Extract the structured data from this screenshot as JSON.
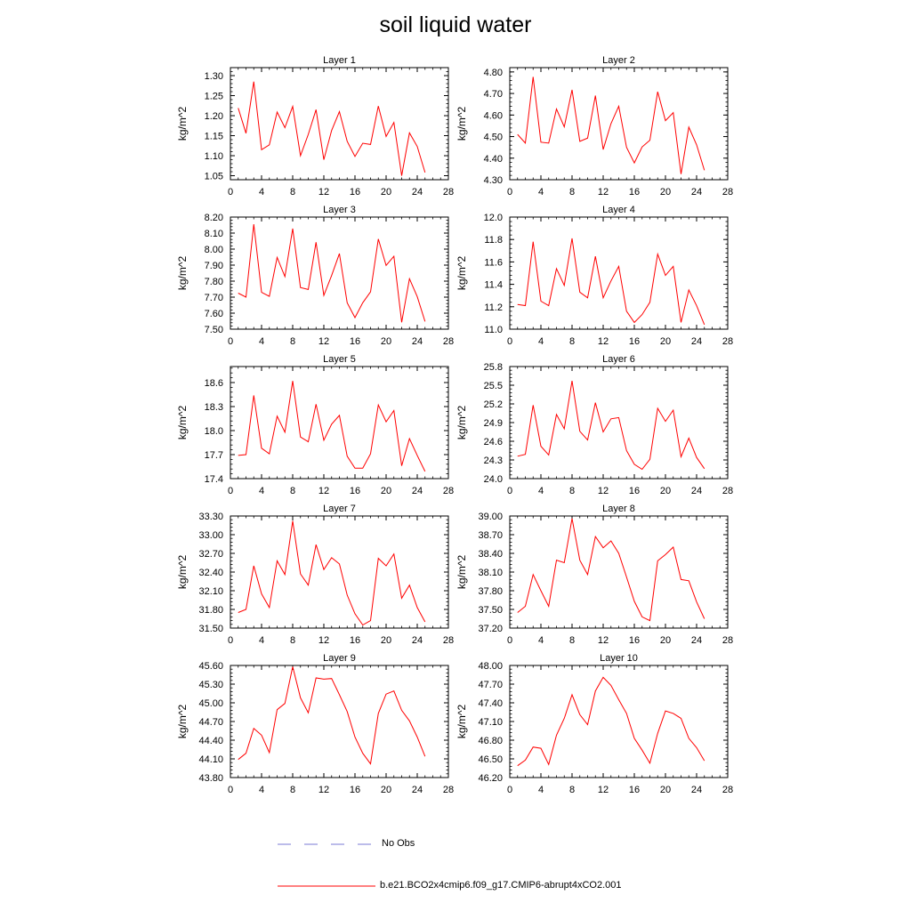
{
  "title": "soil liquid water",
  "legend": {
    "entries": [
      {
        "label": "No Obs",
        "color": "#7a7ad6",
        "dash": "dashed"
      },
      {
        "label": "b.e21.BCO2x4cmip6.f09_g17.CMIP6-abrupt4xCO2.001",
        "color": "#ff0000",
        "dash": "solid"
      }
    ]
  },
  "chart_data": [
    {
      "type": "line",
      "title": "Layer 1",
      "ylabel": "kg/m^2",
      "xlim": [
        0,
        28
      ],
      "xticks": [
        "0",
        "4",
        "8",
        "12",
        "16",
        "20",
        "24",
        "28"
      ],
      "ylim": [
        1.04,
        1.32
      ],
      "yticks": [
        "1.05",
        "1.10",
        "1.15",
        "1.20",
        "1.25",
        "1.30"
      ],
      "x": [
        1,
        2,
        3,
        4,
        5,
        6,
        7,
        8,
        9,
        10,
        11,
        12,
        13,
        14,
        15,
        16,
        17,
        18,
        19,
        20,
        21,
        22,
        23,
        24,
        25
      ],
      "series": [
        {
          "name": "b.e21.BCO2x4cmip6.f09_g17.CMIP6-abrupt4xCO2.001",
          "color": "#ff0000",
          "values": [
            1.219,
            1.156,
            1.285,
            1.115,
            1.127,
            1.209,
            1.17,
            1.223,
            1.1,
            1.153,
            1.215,
            1.09,
            1.163,
            1.21,
            1.136,
            1.098,
            1.131,
            1.128,
            1.224,
            1.148,
            1.183,
            1.05,
            1.157,
            1.123,
            1.058
          ]
        }
      ]
    },
    {
      "type": "line",
      "title": "Layer 2",
      "ylabel": "kg/m^2",
      "xlim": [
        0,
        28
      ],
      "xticks": [
        "0",
        "4",
        "8",
        "12",
        "16",
        "20",
        "24",
        "28"
      ],
      "ylim": [
        4.3,
        4.82
      ],
      "yticks": [
        "4.30",
        "4.40",
        "4.50",
        "4.60",
        "4.70",
        "4.80"
      ],
      "x": [
        1,
        2,
        3,
        4,
        5,
        6,
        7,
        8,
        9,
        10,
        11,
        12,
        13,
        14,
        15,
        16,
        17,
        18,
        19,
        20,
        21,
        22,
        23,
        24,
        25
      ],
      "series": [
        {
          "name": "b.e21.BCO2x4cmip6.f09_g17.CMIP6-abrupt4xCO2.001",
          "color": "#ff0000",
          "values": [
            4.51,
            4.47,
            4.777,
            4.474,
            4.47,
            4.628,
            4.545,
            4.717,
            4.478,
            4.493,
            4.69,
            4.44,
            4.56,
            4.641,
            4.45,
            4.378,
            4.452,
            4.483,
            4.708,
            4.574,
            4.611,
            4.326,
            4.544,
            4.462,
            4.344
          ]
        }
      ]
    },
    {
      "type": "line",
      "title": "Layer 3",
      "ylabel": "kg/m^2",
      "xlim": [
        0,
        28
      ],
      "xticks": [
        "0",
        "4",
        "8",
        "12",
        "16",
        "20",
        "24",
        "28"
      ],
      "ylim": [
        7.5,
        8.2
      ],
      "yticks": [
        "7.50",
        "7.60",
        "7.70",
        "7.80",
        "7.90",
        "8.00",
        "8.10",
        "8.20"
      ],
      "x": [
        1,
        2,
        3,
        4,
        5,
        6,
        7,
        8,
        9,
        10,
        11,
        12,
        13,
        14,
        15,
        16,
        17,
        18,
        19,
        20,
        21,
        22,
        23,
        24,
        25
      ],
      "series": [
        {
          "name": "b.e21.BCO2x4cmip6.f09_g17.CMIP6-abrupt4xCO2.001",
          "color": "#ff0000",
          "values": [
            7.725,
            7.7,
            8.155,
            7.73,
            7.705,
            7.948,
            7.828,
            8.128,
            7.76,
            7.748,
            8.043,
            7.711,
            7.835,
            7.972,
            7.665,
            7.572,
            7.665,
            7.733,
            8.063,
            7.898,
            7.955,
            7.543,
            7.815,
            7.703,
            7.548
          ]
        }
      ]
    },
    {
      "type": "line",
      "title": "Layer 4",
      "ylabel": "kg/m^2",
      "xlim": [
        0,
        28
      ],
      "xticks": [
        "0",
        "4",
        "8",
        "12",
        "16",
        "20",
        "24",
        "28"
      ],
      "ylim": [
        11.0,
        12.0
      ],
      "yticks": [
        "11.0",
        "11.2",
        "11.4",
        "11.6",
        "11.8",
        "12.0"
      ],
      "x": [
        1,
        2,
        3,
        4,
        5,
        6,
        7,
        8,
        9,
        10,
        11,
        12,
        13,
        14,
        15,
        16,
        17,
        18,
        19,
        20,
        21,
        22,
        23,
        24,
        25
      ],
      "series": [
        {
          "name": "b.e21.BCO2x4cmip6.f09_g17.CMIP6-abrupt4xCO2.001",
          "color": "#ff0000",
          "values": [
            11.22,
            11.21,
            11.78,
            11.25,
            11.21,
            11.54,
            11.39,
            11.81,
            11.33,
            11.28,
            11.65,
            11.28,
            11.43,
            11.56,
            11.16,
            11.06,
            11.13,
            11.24,
            11.67,
            11.48,
            11.56,
            11.06,
            11.35,
            11.21,
            11.04
          ]
        }
      ]
    },
    {
      "type": "line",
      "title": "Layer 5",
      "ylabel": "kg/m^2",
      "xlim": [
        0,
        28
      ],
      "xticks": [
        "0",
        "4",
        "8",
        "12",
        "16",
        "20",
        "24",
        "28"
      ],
      "ylim": [
        17.4,
        18.8
      ],
      "yticks": [
        "17.4",
        "17.7",
        "18.0",
        "18.3",
        "18.6"
      ],
      "x": [
        1,
        2,
        3,
        4,
        5,
        6,
        7,
        8,
        9,
        10,
        11,
        12,
        13,
        14,
        15,
        16,
        17,
        18,
        19,
        20,
        21,
        22,
        23,
        24,
        25
      ],
      "series": [
        {
          "name": "b.e21.BCO2x4cmip6.f09_g17.CMIP6-abrupt4xCO2.001",
          "color": "#ff0000",
          "values": [
            17.69,
            17.7,
            18.44,
            17.78,
            17.71,
            18.18,
            17.98,
            18.62,
            17.92,
            17.86,
            18.33,
            17.88,
            18.08,
            18.19,
            17.68,
            17.53,
            17.53,
            17.71,
            18.32,
            18.11,
            18.25,
            17.56,
            17.9,
            17.69,
            17.49
          ]
        }
      ]
    },
    {
      "type": "line",
      "title": "Layer 6",
      "ylabel": "kg/m^2",
      "xlim": [
        0,
        28
      ],
      "xticks": [
        "0",
        "4",
        "8",
        "12",
        "16",
        "20",
        "24",
        "28"
      ],
      "ylim": [
        24.0,
        25.8
      ],
      "yticks": [
        "24.0",
        "24.3",
        "24.6",
        "24.9",
        "25.2",
        "25.5",
        "25.8"
      ],
      "x": [
        1,
        2,
        3,
        4,
        5,
        6,
        7,
        8,
        9,
        10,
        11,
        12,
        13,
        14,
        15,
        16,
        17,
        18,
        19,
        20,
        21,
        22,
        23,
        24,
        25
      ],
      "series": [
        {
          "name": "b.e21.BCO2x4cmip6.f09_g17.CMIP6-abrupt4xCO2.001",
          "color": "#ff0000",
          "values": [
            24.36,
            24.39,
            25.18,
            24.52,
            24.38,
            25.03,
            24.8,
            25.57,
            24.76,
            24.62,
            25.22,
            24.75,
            24.96,
            24.98,
            24.45,
            24.23,
            24.15,
            24.31,
            25.13,
            24.92,
            25.1,
            24.35,
            24.65,
            24.34,
            24.16
          ]
        }
      ]
    },
    {
      "type": "line",
      "title": "Layer 7",
      "ylabel": "kg/m^2",
      "xlim": [
        0,
        28
      ],
      "xticks": [
        "0",
        "4",
        "8",
        "12",
        "16",
        "20",
        "24",
        "28"
      ],
      "ylim": [
        31.5,
        33.3
      ],
      "yticks": [
        "31.50",
        "31.80",
        "32.10",
        "32.40",
        "32.70",
        "33.00",
        "33.30"
      ],
      "x": [
        1,
        2,
        3,
        4,
        5,
        6,
        7,
        8,
        9,
        10,
        11,
        12,
        13,
        14,
        15,
        16,
        17,
        18,
        19,
        20,
        21,
        22,
        23,
        24,
        25
      ],
      "series": [
        {
          "name": "b.e21.BCO2x4cmip6.f09_g17.CMIP6-abrupt4xCO2.001",
          "color": "#ff0000",
          "values": [
            31.75,
            31.8,
            32.5,
            32.05,
            31.83,
            32.58,
            32.36,
            33.22,
            32.37,
            32.19,
            32.84,
            32.44,
            32.63,
            32.53,
            32.03,
            31.73,
            31.55,
            31.62,
            32.62,
            32.5,
            32.69,
            31.98,
            32.19,
            31.83,
            31.6
          ]
        }
      ]
    },
    {
      "type": "line",
      "title": "Layer 8",
      "ylabel": "kg/m^2",
      "xlim": [
        0,
        28
      ],
      "xticks": [
        "0",
        "4",
        "8",
        "12",
        "16",
        "20",
        "24",
        "28"
      ],
      "ylim": [
        37.2,
        39.0
      ],
      "yticks": [
        "37.20",
        "37.50",
        "37.80",
        "38.10",
        "38.40",
        "38.70",
        "39.00"
      ],
      "x": [
        1,
        2,
        3,
        4,
        5,
        6,
        7,
        8,
        9,
        10,
        11,
        12,
        13,
        14,
        15,
        16,
        17,
        18,
        19,
        20,
        21,
        22,
        23,
        24,
        25
      ],
      "series": [
        {
          "name": "b.e21.BCO2x4cmip6.f09_g17.CMIP6-abrupt4xCO2.001",
          "color": "#ff0000",
          "values": [
            37.45,
            37.55,
            38.06,
            37.8,
            37.55,
            38.29,
            38.25,
            38.96,
            38.29,
            38.06,
            38.67,
            38.49,
            38.6,
            38.4,
            38.02,
            37.63,
            37.38,
            37.32,
            38.28,
            38.38,
            38.5,
            37.98,
            37.96,
            37.62,
            37.35
          ]
        }
      ]
    },
    {
      "type": "line",
      "title": "Layer 9",
      "ylabel": "kg/m^2",
      "xlim": [
        0,
        28
      ],
      "xticks": [
        "0",
        "4",
        "8",
        "12",
        "16",
        "20",
        "24",
        "28"
      ],
      "ylim": [
        43.8,
        45.6
      ],
      "yticks": [
        "43.80",
        "44.10",
        "44.40",
        "44.70",
        "45.00",
        "45.30",
        "45.60"
      ],
      "x": [
        1,
        2,
        3,
        4,
        5,
        6,
        7,
        8,
        9,
        10,
        11,
        12,
        13,
        14,
        15,
        16,
        17,
        18,
        19,
        20,
        21,
        22,
        23,
        24,
        25
      ],
      "series": [
        {
          "name": "b.e21.BCO2x4cmip6.f09_g17.CMIP6-abrupt4xCO2.001",
          "color": "#ff0000",
          "values": [
            44.09,
            44.19,
            44.59,
            44.48,
            44.2,
            44.89,
            44.99,
            45.58,
            45.08,
            44.84,
            45.4,
            45.38,
            45.39,
            45.13,
            44.86,
            44.45,
            44.19,
            44.02,
            44.83,
            45.14,
            45.19,
            44.88,
            44.71,
            44.45,
            44.14
          ]
        }
      ]
    },
    {
      "type": "line",
      "title": "Layer 10",
      "ylabel": "kg/m^2",
      "xlim": [
        0,
        28
      ],
      "xticks": [
        "0",
        "4",
        "8",
        "12",
        "16",
        "20",
        "24",
        "28"
      ],
      "ylim": [
        46.2,
        48.0
      ],
      "yticks": [
        "46.20",
        "46.50",
        "46.80",
        "47.10",
        "47.40",
        "47.70",
        "48.00"
      ],
      "x": [
        1,
        2,
        3,
        4,
        5,
        6,
        7,
        8,
        9,
        10,
        11,
        12,
        13,
        14,
        15,
        16,
        17,
        18,
        19,
        20,
        21,
        22,
        23,
        24,
        25
      ],
      "series": [
        {
          "name": "b.e21.BCO2x4cmip6.f09_g17.CMIP6-abrupt4xCO2.001",
          "color": "#ff0000",
          "values": [
            46.39,
            46.48,
            46.69,
            46.67,
            46.41,
            46.88,
            47.15,
            47.53,
            47.21,
            47.05,
            47.59,
            47.81,
            47.68,
            47.45,
            47.23,
            46.83,
            46.64,
            46.43,
            46.91,
            47.27,
            47.23,
            47.15,
            46.83,
            46.68,
            46.47
          ]
        }
      ]
    }
  ]
}
